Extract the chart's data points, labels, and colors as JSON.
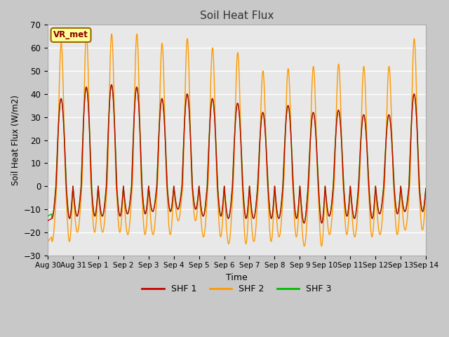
{
  "title": "Soil Heat Flux",
  "xlabel": "Time",
  "ylabel": "Soil Heat Flux (W/m2)",
  "ylim": [
    -30,
    70
  ],
  "yticks": [
    -30,
    -20,
    -10,
    0,
    10,
    20,
    30,
    40,
    50,
    60,
    70
  ],
  "xtick_labels": [
    "Aug 30",
    "Aug 31",
    "Sep 1",
    "Sep 2",
    "Sep 3",
    "Sep 4",
    "Sep 5",
    "Sep 6",
    "Sep 7",
    "Sep 8",
    "Sep 9",
    "Sep 10",
    "Sep 11",
    "Sep 12",
    "Sep 13",
    "Sep 14"
  ],
  "shf1_color": "#cc0000",
  "shf2_color": "#ff9900",
  "shf3_color": "#00bb00",
  "fig_bg_color": "#c8c8c8",
  "plot_bg_color": "#e8e8e8",
  "grid_color": "#ffffff",
  "annotation_text": "VR_met",
  "annotation_bg": "#ffff99",
  "annotation_border": "#996600",
  "legend_labels": [
    "SHF 1",
    "SHF 2",
    "SHF 3"
  ],
  "shf2_day_amps": [
    62,
    66,
    66,
    66,
    62,
    64,
    60,
    58,
    50,
    51,
    52,
    53,
    52,
    52,
    64
  ],
  "shf13_day_amps": [
    38,
    43,
    44,
    43,
    38,
    40,
    38,
    36,
    32,
    35,
    32,
    33,
    31,
    31,
    40
  ],
  "shf2_night_mins": [
    -24,
    -20,
    -20,
    -21,
    -21,
    -15,
    -22,
    -25,
    -24,
    -22,
    -26,
    -21,
    -22,
    -21,
    -19
  ],
  "shf13_night_mins": [
    -14,
    -13,
    -13,
    -12,
    -11,
    -10,
    -13,
    -14,
    -14,
    -14,
    -16,
    -13,
    -14,
    -12,
    -11
  ],
  "n_days": 15,
  "pts_per_day": 144
}
